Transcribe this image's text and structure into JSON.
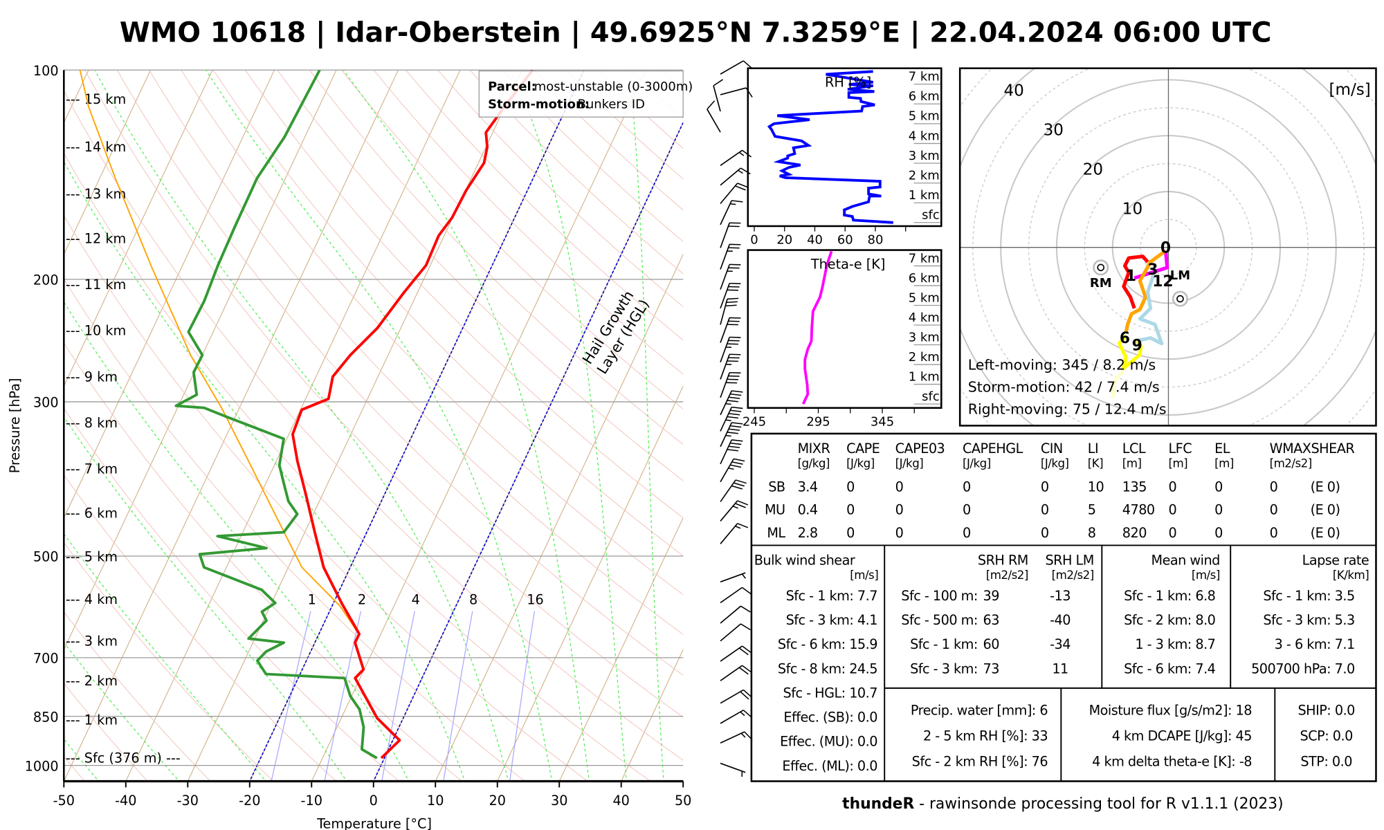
{
  "title": "WMO 10618 | Idar-Oberstein | 49.6925°N 7.3259°E | 22.04.2024 06:00 UTC",
  "footer": {
    "brand": "thundeR",
    "text": " - rawinsonde processing tool for R v1.1.1 (2023)"
  },
  "legend": {
    "parcel_label": "Parcel:",
    "parcel_value": "most-unstable (0-3000m)",
    "storm_label": "Storm-motion:",
    "storm_value": "Bunkers ID"
  },
  "colors": {
    "temperature": "#ff0000",
    "dewpoint": "#339933",
    "parcel": "#ffa500",
    "rh": "#0000ff",
    "theta_e": "#ff00ff",
    "isotherm": "#d2b48c",
    "dry_adiabat": "#f2c6bf",
    "moist_adiabat": "#55ee55",
    "mixing_ratio": "#aaaaff",
    "hgl": "#0000cc"
  },
  "chart_data": [
    {
      "type": "line",
      "name": "skew-T log-P diagram",
      "xlabel": "Temperature [°C]",
      "ylabel": "Pressure [hPa]",
      "xlim": [
        -50,
        50
      ],
      "ylim": [
        1050,
        100
      ],
      "x_ticks": [
        "-50",
        "-40",
        "-30",
        "-20",
        "-10",
        "0",
        "10",
        "20",
        "30",
        "40",
        "50"
      ],
      "y_ticks": [
        "100",
        "200",
        "300",
        "500",
        "700",
        "850",
        "1000"
      ],
      "height_labels": [
        "--- 15 km",
        "--- 14 km",
        "--- 13 km",
        "--- 12 km",
        "--- 11 km",
        "--- 10 km",
        "--- 9 km",
        "--- 8 km",
        "--- 7 km",
        "--- 6 km",
        "--- 5 km",
        "--- 4 km",
        "--- 3 km",
        "--- 2 km",
        "--- 1 km",
        "--- Sfc (376 m) ---"
      ],
      "mixing_ratio_labels": [
        "1",
        "2",
        "4",
        "8",
        "16"
      ],
      "hgl_label": [
        "Hail Growth",
        "Layer (HGL)"
      ],
      "hgl_isotherms": [
        -20,
        0
      ],
      "temperature": [
        [
          976,
          -0.5
        ],
        [
          920,
          1.1
        ],
        [
          855,
          -4.2
        ],
        [
          749,
          -10.8
        ],
        [
          728,
          -10.1
        ],
        [
          666,
          -13.5
        ],
        [
          647,
          -13.5
        ],
        [
          584,
          -18.7
        ],
        [
          519,
          -24.3
        ],
        [
          462,
          -28.4
        ],
        [
          410,
          -32.5
        ],
        [
          365,
          -36.6
        ],
        [
          334,
          -39.4
        ],
        [
          308,
          -39.8
        ],
        [
          297,
          -36.3
        ],
        [
          276,
          -37.3
        ],
        [
          257,
          -36.1
        ],
        [
          235,
          -33.8
        ],
        [
          209,
          -32.2
        ],
        [
          191,
          -30.7
        ],
        [
          173,
          -30.9
        ],
        [
          163,
          -30.1
        ],
        [
          149,
          -29.9
        ],
        [
          136,
          -29.1
        ],
        [
          129,
          -29.8
        ],
        [
          123,
          -31.1
        ],
        [
          114,
          -30.2
        ],
        [
          100,
          -28.3
        ]
      ],
      "dewpoint": [
        [
          976,
          -1.2
        ],
        [
          948,
          -4.3
        ],
        [
          881,
          -5.7
        ],
        [
          831,
          -7.7
        ],
        [
          795,
          -10.2
        ],
        [
          749,
          -12.5
        ],
        [
          739,
          -25.5
        ],
        [
          707,
          -27.9
        ],
        [
          686,
          -27.2
        ],
        [
          666,
          -25.0
        ],
        [
          657,
          -31.0
        ],
        [
          619,
          -29.5
        ],
        [
          601,
          -30.9
        ],
        [
          584,
          -29.4
        ],
        [
          559,
          -32.6
        ],
        [
          519,
          -43.6
        ],
        [
          497,
          -45.3
        ],
        [
          487,
          -35.0
        ],
        [
          468,
          -43.8
        ],
        [
          462,
          -33.4
        ],
        [
          435,
          -32.6
        ],
        [
          417,
          -35.0
        ],
        [
          393,
          -37.1
        ],
        [
          370,
          -39.2
        ],
        [
          339,
          -40.5
        ],
        [
          315,
          -51.5
        ],
        [
          306,
          -55.7
        ],
        [
          304,
          -60.4
        ],
        [
          293,
          -57.9
        ],
        [
          272,
          -60.1
        ],
        [
          257,
          -60.0
        ],
        [
          238,
          -64.0
        ],
        [
          215,
          -63.8
        ],
        [
          191,
          -64.3
        ],
        [
          168,
          -64.5
        ],
        [
          143,
          -64.6
        ],
        [
          125,
          -63.3
        ],
        [
          100,
          -62.7
        ]
      ],
      "parcel": [
        [
          650,
          -13.3
        ],
        [
          590,
          -18.7
        ],
        [
          519,
          -27.8
        ],
        [
          435,
          -36.2
        ],
        [
          365,
          -44.5
        ],
        [
          306,
          -52.9
        ],
        [
          257,
          -61.9
        ],
        [
          191,
          -75.1
        ],
        [
          143,
          -87.5
        ],
        [
          113,
          -97.2
        ],
        [
          100,
          -101.4
        ]
      ],
      "wind_barbs": [
        [
          99,
          60,
          10
        ],
        [
          106,
          75,
          10
        ],
        [
          112,
          345,
          10
        ],
        [
          120,
          330,
          10
        ],
        [
          134,
          55,
          15
        ],
        [
          143,
          50,
          15
        ],
        [
          152,
          40,
          20
        ],
        [
          163,
          25,
          15
        ],
        [
          176,
          20,
          20
        ],
        [
          189,
          20,
          25
        ],
        [
          202,
          20,
          25
        ],
        [
          215,
          20,
          30
        ],
        [
          227,
          15,
          30
        ],
        [
          241,
          20,
          30
        ],
        [
          257,
          20,
          35
        ],
        [
          272,
          20,
          35
        ],
        [
          289,
          20,
          40
        ],
        [
          306,
          25,
          45
        ],
        [
          323,
          25,
          45
        ],
        [
          340,
          25,
          45
        ],
        [
          360,
          25,
          40
        ],
        [
          382,
          30,
          35
        ],
        [
          408,
          35,
          30
        ],
        [
          435,
          40,
          25
        ],
        [
          469,
          40,
          15
        ],
        [
          532,
          70,
          5
        ],
        [
          570,
          55,
          10
        ],
        [
          610,
          50,
          10
        ],
        [
          647,
          50,
          10
        ],
        [
          692,
          55,
          20
        ],
        [
          738,
          55,
          20
        ],
        [
          795,
          60,
          20
        ],
        [
          850,
          60,
          15
        ],
        [
          907,
          65,
          15
        ],
        [
          970,
          110,
          5
        ]
      ]
    },
    {
      "type": "line",
      "name": "RH profile",
      "label": "RH [%]",
      "x_ticks": [
        "0",
        "20",
        "40",
        "60",
        "80"
      ],
      "height_labels": [
        "sfc",
        "1 km",
        "2 km",
        "3 km",
        "4 km",
        "5 km",
        "6 km",
        "7 km"
      ],
      "points": [
        [
          91.8,
          0
        ],
        [
          65.5,
          0.12
        ],
        [
          64.8,
          0.31
        ],
        [
          59.5,
          0.38
        ],
        [
          59.5,
          0.64
        ],
        [
          64.8,
          0.81
        ],
        [
          75.5,
          1.05
        ],
        [
          76.2,
          1.34
        ],
        [
          83.8,
          1.34
        ],
        [
          75.5,
          1.45
        ],
        [
          75.5,
          1.74
        ],
        [
          83.1,
          1.8
        ],
        [
          83.1,
          2.09
        ],
        [
          20.6,
          2.27
        ],
        [
          16.8,
          2.36
        ],
        [
          22.9,
          2.44
        ],
        [
          18.3,
          2.62
        ],
        [
          22.9,
          2.79
        ],
        [
          30.5,
          2.91
        ],
        [
          16,
          3.08
        ],
        [
          22.1,
          3.26
        ],
        [
          22.1,
          3.37
        ],
        [
          26.7,
          3.49
        ],
        [
          25.9,
          3.78
        ],
        [
          35.8,
          3.9
        ],
        [
          31.3,
          4.13
        ],
        [
          13.7,
          4.36
        ],
        [
          11.4,
          4.71
        ],
        [
          9.9,
          4.85
        ],
        [
          13,
          5.0
        ],
        [
          36.6,
          5.2
        ],
        [
          15.2,
          5.41
        ],
        [
          70.9,
          5.64
        ],
        [
          71.6,
          5.87
        ],
        [
          79.6,
          5.95
        ],
        [
          70.5,
          6.12
        ],
        [
          70.2,
          6.28
        ],
        [
          62.5,
          6.33
        ],
        [
          62.5,
          6.57
        ],
        [
          79.3,
          6.63
        ],
        [
          61.7,
          6.74
        ],
        [
          78.5,
          6.92
        ],
        [
          62.5,
          6.98
        ],
        [
          78.5,
          7.1
        ],
        [
          47.3,
          7.5
        ],
        [
          78.5,
          7.64
        ]
      ]
    },
    {
      "type": "line",
      "name": "Theta-e profile",
      "label": "Theta-e [K]",
      "x_ticks": [
        "245",
        "295",
        "345"
      ],
      "height_labels": [
        "sfc",
        "1 km",
        "2 km",
        "3 km",
        "4 km",
        "5 km",
        "6 km",
        "7 km"
      ],
      "points": [
        [
          283.2,
          0
        ],
        [
          286.8,
          0.5
        ],
        [
          286.4,
          0.97
        ],
        [
          284.6,
          1.78
        ],
        [
          284.6,
          2.25
        ],
        [
          286.8,
          2.78
        ],
        [
          289.6,
          3.19
        ],
        [
          290,
          3.89
        ],
        [
          290.9,
          4.7
        ],
        [
          292.7,
          4.94
        ],
        [
          296.3,
          5.41
        ],
        [
          298.1,
          5.88
        ],
        [
          299.9,
          6.46
        ],
        [
          301.7,
          7.04
        ],
        [
          305.3,
          7.74
        ]
      ]
    },
    {
      "type": "line",
      "name": "hodograph",
      "unit_label": "[m/s]",
      "ring_labels": [
        "10",
        "20",
        "30",
        "40"
      ],
      "segments": [
        {
          "name": "0-1 km",
          "color": "#ff00ff",
          "points": [
            [
              -0.5,
              -0.6
            ],
            [
              -0.2,
              -3.6
            ],
            [
              -6.1,
              -5.5
            ]
          ]
        },
        {
          "name": "1-3 km",
          "color": "#ff0000",
          "points": [
            [
              -3.7,
              -2.6
            ],
            [
              -4.6,
              -1.6
            ],
            [
              -7.1,
              -1.9
            ],
            [
              -7.8,
              -3.3
            ],
            [
              -7.1,
              -4.5
            ],
            [
              -8,
              -7
            ],
            [
              -6.8,
              -8.9
            ],
            [
              -6.1,
              -10.9
            ]
          ]
        },
        {
          "name": "3-6 km",
          "color": "#ffa500",
          "points": [
            [
              -0.5,
              -0.6
            ],
            [
              -3.2,
              -2.6
            ],
            [
              -5.1,
              -6
            ],
            [
              -4.1,
              -8.9
            ],
            [
              -5.1,
              -11.1
            ],
            [
              -6.6,
              -11.9
            ],
            [
              -7.3,
              -13.8
            ],
            [
              -7.6,
              -15.3
            ]
          ]
        },
        {
          "name": "6-9 km",
          "color": "#ffff00",
          "points": [
            [
              -7.6,
              -15.8
            ],
            [
              -8.8,
              -17.2
            ],
            [
              -7.6,
              -19.7
            ],
            [
              -8,
              -21.6
            ],
            [
              -5.1,
              -19.2
            ],
            [
              -4.9,
              -17.7
            ],
            [
              -5.6,
              -16.7
            ]
          ]
        },
        {
          "name": "9-12 km",
          "color": "#add8e6",
          "points": [
            [
              -5.6,
              -16.7
            ],
            [
              -3.2,
              -16.2
            ],
            [
              -1.2,
              -17.2
            ],
            [
              -2.4,
              -13.8
            ],
            [
              -3.7,
              -13.3
            ],
            [
              -5.1,
              -12.8
            ],
            [
              -3.2,
              -10.9
            ],
            [
              -3.7,
              -8
            ],
            [
              -2.7,
              -5
            ]
          ]
        },
        {
          "name": "12+ km",
          "color": "#ffffcc",
          "points": [
            [
              -8,
              -22.1
            ],
            [
              -9.5,
              -23.6
            ],
            [
              -10,
              -27
            ]
          ]
        }
      ],
      "height_marks": [
        {
          "label": "0",
          "u": -0.5,
          "v": 0
        },
        {
          "label": "1",
          "u": -6.7,
          "v": -5
        },
        {
          "label": "3",
          "u": -2.8,
          "v": -3.9
        },
        {
          "label": "12",
          "u": -1,
          "v": -6
        },
        {
          "label": "6",
          "u": -7.8,
          "v": -16.2
        },
        {
          "label": "9",
          "u": -5.6,
          "v": -17.5
        }
      ],
      "rm": {
        "label": "RM",
        "u": -12.1,
        "v": -3.6
      },
      "lm": {
        "label": "LM",
        "u": 2.1,
        "v": -9.2
      },
      "texts": [
        "Left-moving: 345 / 8.2 m/s",
        "Storm-motion: 42 / 7.4 m/s",
        "Right-moving: 75 / 12.4 m/s"
      ]
    }
  ],
  "indices": {
    "columns": [
      {
        "name": "MIXR",
        "unit": "[g/kg]"
      },
      {
        "name": "CAPE",
        "unit": "[J/kg]"
      },
      {
        "name": "CAPE03",
        "unit": "[J/kg]"
      },
      {
        "name": "CAPEHGL",
        "unit": "[J/kg]"
      },
      {
        "name": "CIN",
        "unit": "[J/kg]"
      },
      {
        "name": "LI",
        "unit": "[K]"
      },
      {
        "name": "LCL",
        "unit": "[m]"
      },
      {
        "name": "LFC",
        "unit": "[m]"
      },
      {
        "name": "EL",
        "unit": "[m]"
      },
      {
        "name": "WMAXSHEAR",
        "unit": "[m2/s2]"
      }
    ],
    "rows": [
      {
        "label": "SB",
        "values": [
          "3.4",
          "0",
          "0",
          "0",
          "0",
          "10",
          "135",
          "0",
          "0",
          "0"
        ],
        "extra": "(E 0)"
      },
      {
        "label": "MU",
        "values": [
          "0.4",
          "0",
          "0",
          "0",
          "0",
          "5",
          "4780",
          "0",
          "0",
          "0"
        ],
        "extra": "(E 0)"
      },
      {
        "label": "ML",
        "values": [
          "2.8",
          "0",
          "0",
          "0",
          "0",
          "8",
          "820",
          "0",
          "0",
          "0"
        ],
        "extra": "(E 0)"
      }
    ]
  },
  "bulk_shear": {
    "title": "Bulk wind shear",
    "unit": "[m/s]",
    "rows": [
      "Sfc - 1 km: 7.7",
      "Sfc - 3 km: 4.1",
      "Sfc - 6 km: 15.9",
      "Sfc - 8 km: 24.5",
      "Sfc - HGL: 10.7",
      "Effec. (SB): 0.0",
      "Effec. (MU): 0.0",
      "Effec. (ML): 0.0"
    ]
  },
  "srh": {
    "title_rm": "SRH RM",
    "title_lm": "SRH LM",
    "unit_rm": "[m2/s2]",
    "unit_lm": "[m2/s2]",
    "rows": [
      {
        "label": "Sfc - 100 m:",
        "rm": "39",
        "lm": "-13"
      },
      {
        "label": "Sfc - 500 m:",
        "rm": "63",
        "lm": "-40"
      },
      {
        "label": "Sfc - 1 km:",
        "rm": "60",
        "lm": "-34"
      },
      {
        "label": "Sfc - 3 km:",
        "rm": "73",
        "lm": "11"
      }
    ]
  },
  "mean_wind": {
    "title": "Mean wind",
    "unit": "[m/s]",
    "rows": [
      "Sfc - 1 km: 6.8",
      "Sfc - 2 km: 8.0",
      "1 - 3 km: 8.7",
      "Sfc - 6 km: 7.4"
    ]
  },
  "lapse_rate": {
    "title": "Lapse rate",
    "unit": "[K/km]",
    "rows": [
      "Sfc - 1 km: 3.5",
      "Sfc - 3 km: 5.3",
      "3 - 6 km: 7.1",
      "500700 hPa: 7.0"
    ]
  },
  "moisture": {
    "rows": [
      "Precip. water [mm]: 6",
      "2 - 5 km RH [%]: 33",
      "Sfc - 2 km RH [%]: 76"
    ]
  },
  "flux": {
    "rows": [
      "Moisture flux [g/s/m2]: 18",
      "4 km DCAPE [J/kg]: 45",
      "4 km delta theta-e [K]: -8"
    ]
  },
  "composites": {
    "rows": [
      "SHIP: 0.0",
      "SCP: 0.0",
      "STP: 0.0"
    ]
  }
}
